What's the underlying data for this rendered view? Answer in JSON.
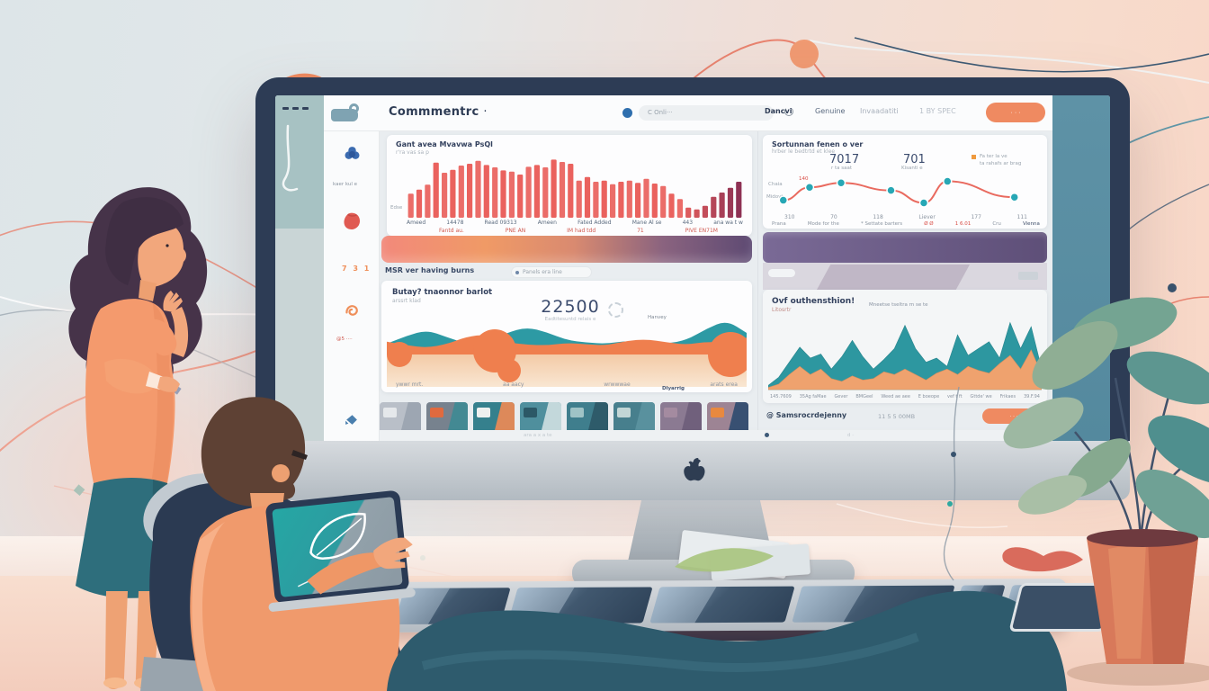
{
  "scene": {
    "palette": {
      "coral": "#ef8a61",
      "teal": "#2d97a0",
      "navy": "#33415e",
      "peach": "#f8d8c8",
      "cool": "#dfe6e9"
    }
  },
  "screen": {
    "header": {
      "title": "Commmentrc",
      "title_mark": "·",
      "search_text": "C Onli···",
      "nav_items": [
        "Dancvi",
        "Genuine",
        "Invaadatiti",
        "1 BY SPEC"
      ],
      "primary_button": "· · ·"
    },
    "sidebar": {
      "top_label": "kaer kul e",
      "mid_label": "7 3 1",
      "small_label": "@5 ····"
    },
    "bar_card": {
      "title": "Gant avea Mvavwa PsQl",
      "subtitle": "r'ra vas sa p",
      "axis_label": "Edse",
      "ticks": [
        "Ameed",
        "14478",
        "Read 09313",
        "Ameen",
        "Fated Added",
        "Mane Al se",
        "443",
        "ana wa t w"
      ],
      "sub_ticks": [
        "Fantd au.",
        "PNE AN",
        "IM had tdd",
        "71",
        "PIVE EN71M"
      ]
    },
    "progress_row": {
      "label": "MSR ver having burns",
      "pill": "Panels era line"
    },
    "blob_card": {
      "title": "Butay? tnaonnor barlot",
      "subtitle": "arssrt klad",
      "big_value": "22500",
      "value_caption": "Eadtitesuntd relais e",
      "side_label": "Hanvey",
      "ticks": [
        "ywwr mrt.",
        "aa aacy",
        "wrwwwae",
        "arats erea"
      ],
      "corner_label": "Dlyarrig"
    },
    "line_card": {
      "title": "Sortunnan fenen o ver",
      "subtitle": "hrber le bedtrtd et klee",
      "value_a": "7017",
      "value_a_caption": "r ta saat",
      "value_b": "701",
      "value_b_caption": "Kisanti e",
      "legend": [
        "Fa ter la ve",
        "ta rahafs ar brag"
      ],
      "left_labels": [
        "Chaia",
        "Midovt"
      ],
      "peak_label": "140",
      "ticks": [
        "310",
        "70",
        "118",
        "Liever",
        "177",
        "111"
      ],
      "footer": [
        {
          "t": "Prana"
        },
        {
          "t": "Mode for the"
        },
        {
          "t": "* Settate barters"
        },
        {
          "t": "Ø Ø",
          "c": "#d84a43"
        },
        {
          "t": "1 6.01",
          "c": "#d84a43"
        },
        {
          "t": "Cru"
        },
        {
          "t": "Vienna",
          "c": "#3c4c68"
        }
      ]
    },
    "mountain_card": {
      "title": "Ovf outhensthion!",
      "subtitle": "Litosrtr",
      "center_note": "Mneetse tseltra rn se te",
      "ticks": [
        "145.7609",
        "35Ag faMae",
        "Gever",
        "BMGeel",
        "Weed ae aee",
        "E boeope",
        "vef t ft",
        "Gttde' we",
        "Frikaes",
        "39.F.94"
      ]
    },
    "bottom_row": {
      "handle": "@ Samsrocrdejenny",
      "meta": "11 5 5 00MB",
      "button": "· · ·"
    },
    "footer": {
      "left": "ara a x a te",
      "mid": "d ·"
    },
    "thumbnails": [
      {
        "base": "#b9bfc8",
        "patch": "#e5e8eb",
        "accent": "#9aa3af"
      },
      {
        "base": "#77828e",
        "patch": "#e06a3f",
        "accent": "#3d8a94"
      },
      {
        "base": "#35808d",
        "patch": "#eef0ef",
        "accent": "#ef8a54"
      },
      {
        "base": "#4f8f9d",
        "patch": "#2c5866",
        "accent": "#cfe0e2"
      },
      {
        "base": "#3f7e8d",
        "patch": "#9fc3c6",
        "accent": "#2c5866"
      },
      {
        "base": "#477f8d",
        "patch": "#c2d6d6",
        "accent": "#5b93a0"
      },
      {
        "base": "#8b7a92",
        "patch": "#a48ba0",
        "accent": "#6d5d7a"
      },
      {
        "base": "#9d8494",
        "patch": "#e8893f",
        "accent": "#2e4a6e"
      }
    ]
  },
  "chart_data": [
    {
      "id": "bars",
      "type": "bar",
      "title": "Gant avea Mvavwa PsQl",
      "categories": [
        "Ameed",
        "14478",
        "Read 09313",
        "Ameen",
        "Fated Added",
        "Mane Al se",
        "443",
        "ana wa t w"
      ],
      "values": [
        0.4,
        0.47,
        0.55,
        0.92,
        0.75,
        0.8,
        0.87,
        0.9,
        0.95,
        0.88,
        0.84,
        0.79,
        0.77,
        0.72,
        0.85,
        0.88,
        0.84,
        0.97,
        0.93,
        0.9,
        0.62,
        0.68,
        0.6,
        0.62,
        0.56,
        0.6,
        0.62,
        0.58,
        0.65,
        0.57,
        0.53,
        0.4,
        0.31,
        0.17,
        0.14,
        0.2,
        0.35,
        0.42,
        0.5,
        0.6
      ],
      "ylim": [
        0,
        1
      ],
      "color": "#ea625e",
      "color_dark": "#8e3154",
      "dark_from": 33,
      "grid": false
    },
    {
      "id": "sessions",
      "type": "line",
      "title": "Sortunnan fenen o ver",
      "points": [
        [
          0.03,
          0.68
        ],
        [
          0.13,
          0.34
        ],
        [
          0.25,
          0.22
        ],
        [
          0.44,
          0.42
        ],
        [
          0.565,
          0.75
        ],
        [
          0.655,
          0.18
        ],
        [
          0.91,
          0.6
        ]
      ],
      "x_ticks": [
        "310",
        "70",
        "118",
        "Liever",
        "177",
        "111"
      ],
      "annotations": [
        "7017",
        "701",
        "140"
      ],
      "line_color": "#e96a5f",
      "marker_color": "#27a7b5",
      "legend_position": "top-right"
    },
    {
      "id": "blobs",
      "type": "area",
      "title": "Butay? tnaonnor barlot",
      "headline_value": "22500",
      "base_frac": 0.55,
      "series": [
        {
          "name": "purple",
          "color": "#9b8fa3",
          "opacity": 0.9,
          "amp": 30,
          "values": [
            0.02,
            0.1,
            0.3,
            0.48,
            0.52,
            0.42,
            0.22,
            0.08,
            0.02,
            0,
            0,
            0,
            0,
            0,
            0,
            0,
            0,
            0,
            0
          ]
        },
        {
          "name": "teal",
          "color": "#2d9aa4",
          "opacity": 1,
          "amp": 40,
          "values": [
            0.3,
            0.52,
            0.68,
            0.48,
            0.3,
            0.34,
            0.6,
            0.76,
            0.62,
            0.4,
            0.33,
            0.3,
            0.38,
            0.33,
            0.3,
            0.4,
            0.72,
            0.95,
            0.6
          ]
        },
        {
          "name": "orange",
          "color": "#ef7f4e",
          "opacity": 1,
          "amp": 34,
          "values": [
            0.42,
            0.3,
            0.22,
            0.34,
            0.58,
            0.66,
            0.4,
            0.32,
            0.3,
            0.38,
            0.33,
            0.3,
            0.45,
            0.5,
            0.4,
            0.32,
            0.42,
            0.38,
            0.55
          ]
        }
      ],
      "circles": [
        [
          14,
          44,
          14
        ],
        [
          120,
          40,
          24
        ],
        [
          136,
          62,
          13
        ],
        [
          382,
          44,
          25
        ]
      ],
      "circle_color": "#ef7f4e"
    },
    {
      "id": "mountain",
      "type": "area",
      "title": "Ovf outhensthion!",
      "series": [
        {
          "name": "teal",
          "color": "#2d97a0",
          "opacity": 1,
          "values": [
            0.06,
            0.18,
            0.4,
            0.62,
            0.46,
            0.52,
            0.3,
            0.48,
            0.72,
            0.48,
            0.3,
            0.44,
            0.6,
            0.94,
            0.6,
            0.4,
            0.46,
            0.34,
            0.8,
            0.5,
            0.6,
            0.7,
            0.46,
            0.98,
            0.6,
            0.92,
            0.3
          ]
        },
        {
          "name": "orange",
          "color": "#efa26e",
          "opacity": 1,
          "values": [
            0.03,
            0.08,
            0.22,
            0.34,
            0.22,
            0.3,
            0.16,
            0.12,
            0.2,
            0.14,
            0.16,
            0.26,
            0.22,
            0.3,
            0.22,
            0.14,
            0.24,
            0.3,
            0.22,
            0.34,
            0.28,
            0.24,
            0.38,
            0.5,
            0.3,
            0.58,
            0.22
          ]
        }
      ]
    }
  ]
}
